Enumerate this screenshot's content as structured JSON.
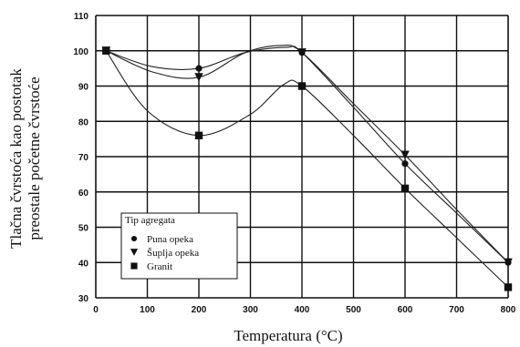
{
  "chart_data": {
    "type": "line",
    "xlabel": "Temperatura (°C)",
    "ylabel": [
      "Tlačna čvrstoća kao postotak",
      "preostale početne čvrstoće"
    ],
    "xlim": [
      0,
      800
    ],
    "ylim": [
      30,
      110
    ],
    "x_ticks": [
      0,
      100,
      200,
      300,
      400,
      500,
      600,
      700,
      800
    ],
    "y_ticks": [
      30,
      40,
      50,
      60,
      70,
      80,
      90,
      100,
      110
    ],
    "grid": true,
    "legend": {
      "title": "Tip agregata",
      "position": "lower-left"
    },
    "series": [
      {
        "name": "Puna opeka",
        "marker": "circle",
        "points": [
          [
            20,
            100
          ],
          [
            200,
            95
          ],
          [
            400,
            99.5
          ],
          [
            600,
            68
          ],
          [
            800,
            40
          ]
        ]
      },
      {
        "name": "Šuplja opeka",
        "marker": "triangle-down",
        "points": [
          [
            20,
            100
          ],
          [
            200,
            92.5
          ],
          [
            400,
            99.5
          ],
          [
            600,
            70.5
          ],
          [
            800,
            40
          ]
        ]
      },
      {
        "name": "Granit",
        "marker": "square",
        "points": [
          [
            20,
            100
          ],
          [
            200,
            76
          ],
          [
            400,
            90
          ],
          [
            600,
            61
          ],
          [
            800,
            33
          ]
        ]
      }
    ],
    "curve_control_points": [
      [
        [
          20,
          100
        ],
        [
          110,
          95.5
        ],
        [
          200,
          95
        ],
        [
          290,
          99.5
        ],
        [
          370,
          101
        ],
        [
          400,
          99.5
        ],
        [
          500,
          84
        ],
        [
          600,
          68
        ],
        [
          700,
          54
        ],
        [
          800,
          40
        ]
      ],
      [
        [
          20,
          100
        ],
        [
          110,
          94
        ],
        [
          200,
          92.5
        ],
        [
          290,
          99.5
        ],
        [
          360,
          101.5
        ],
        [
          400,
          99.5
        ],
        [
          500,
          85
        ],
        [
          600,
          70.5
        ],
        [
          700,
          55
        ],
        [
          800,
          40
        ]
      ],
      [
        [
          20,
          100
        ],
        [
          100,
          83
        ],
        [
          200,
          76
        ],
        [
          300,
          82
        ],
        [
          365,
          90.5
        ],
        [
          400,
          90
        ],
        [
          500,
          76
        ],
        [
          600,
          61
        ],
        [
          700,
          47
        ],
        [
          800,
          33
        ]
      ]
    ],
    "colors": {
      "line": "#222222",
      "grid": "#111111",
      "background": "#ffffff"
    }
  }
}
